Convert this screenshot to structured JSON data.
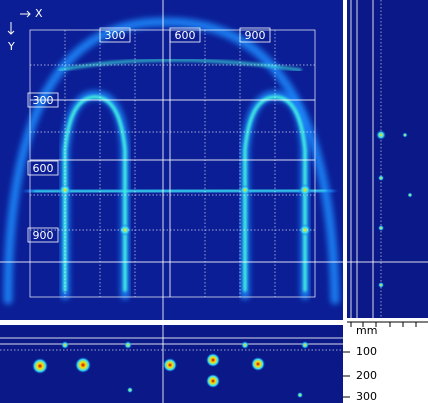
{
  "orientation": {
    "x_label": "X",
    "y_label": "Y"
  },
  "top_axis": {
    "ticks": [
      300,
      600,
      900
    ]
  },
  "left_axis": {
    "ticks": [
      300,
      600,
      900
    ]
  },
  "depth_axis": {
    "unit": "mm",
    "ticks": [
      100,
      200,
      300
    ]
  }
}
